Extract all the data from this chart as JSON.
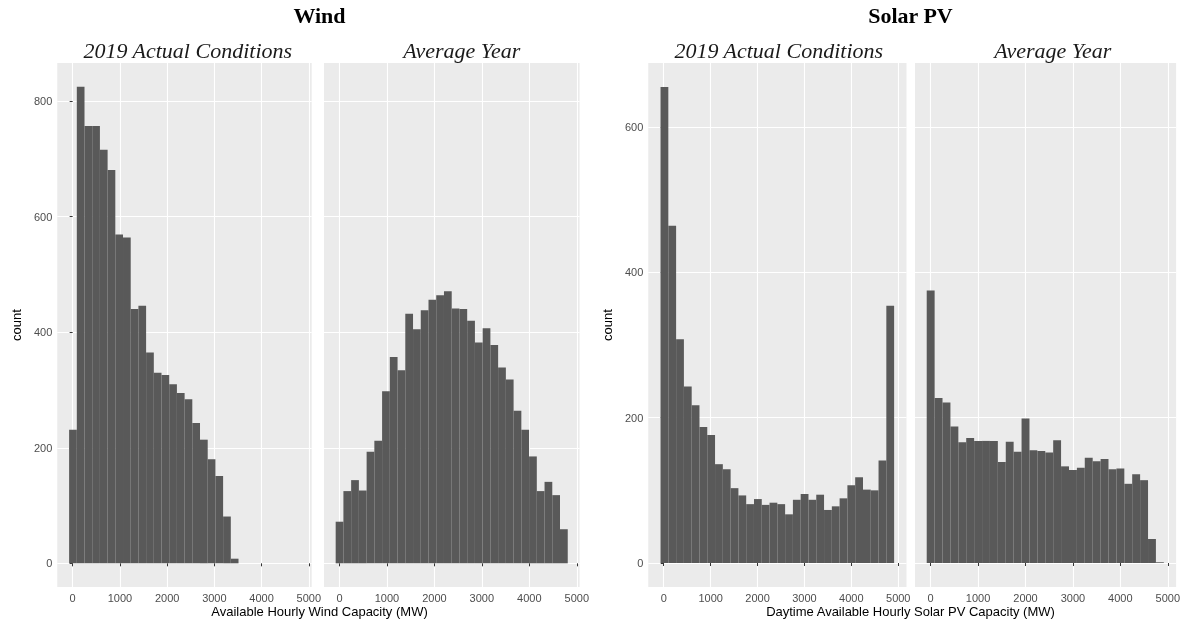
{
  "chart_data": [
    {
      "type": "histogram",
      "title": "Wind",
      "subtitle": "2019 Actual Conditions",
      "xlabel": "Available Hourly Wind Capacity (MW)",
      "ylabel": "count",
      "color": "#595959",
      "bins": [
        -75,
        88,
        251,
        414,
        577,
        740,
        903,
        1066,
        1229,
        1392,
        1555,
        1718,
        1881,
        2044,
        2207,
        2370,
        2533,
        2696,
        2859,
        3022,
        3185,
        3348,
        3511
      ],
      "values": [
        231,
        825,
        757,
        757,
        716,
        681,
        569,
        564,
        440,
        446,
        365,
        330,
        326,
        310,
        295,
        284,
        243,
        214,
        180,
        151,
        81,
        8
      ],
      "xlim": [
        -326,
        5060
      ],
      "xticks": [
        0,
        1000,
        2000,
        3000,
        4000,
        5000
      ],
      "ylim": [
        -41,
        866
      ],
      "yticks": [
        0,
        200,
        400,
        600,
        800
      ],
      "grid": true
    },
    {
      "type": "histogram",
      "subtitle": "Average Year",
      "color": "#595959",
      "bins": [
        -80,
        83,
        246,
        409,
        572,
        735,
        898,
        1061,
        1224,
        1387,
        1550,
        1713,
        1876,
        2039,
        2202,
        2365,
        2528,
        2691,
        2854,
        3017,
        3180,
        3343,
        3506,
        3669,
        3832,
        3995,
        4158,
        4321,
        4484,
        4647,
        4810
      ],
      "values": [
        72,
        125,
        144,
        126,
        193,
        212,
        298,
        357,
        334,
        432,
        405,
        438,
        456,
        464,
        471,
        441,
        440,
        420,
        382,
        407,
        378,
        339,
        318,
        264,
        231,
        185,
        125,
        141,
        118,
        59
      ],
      "xlim": [
        -326,
        5060
      ],
      "xticks": [
        0,
        1000,
        2000,
        3000,
        4000,
        5000
      ],
      "ylim": [
        -41,
        866
      ],
      "yticks": [
        0,
        200,
        400,
        600,
        800
      ],
      "grid": true,
      "tick_labels": "x"
    },
    {
      "type": "histogram",
      "title": "Solar PV",
      "subtitle": "2019 Actual Conditions",
      "xlabel": "Daytime Available Hourly Solar PV Capacity (MW)",
      "ylabel": "count",
      "color": "#595959",
      "bins": [
        -68,
        98,
        264,
        430,
        596,
        762,
        928,
        1094,
        1260,
        1426,
        1592,
        1758,
        1924,
        2090,
        2256,
        2422,
        2588,
        2754,
        2920,
        3086,
        3252,
        3418,
        3584,
        3750,
        3916,
        4082,
        4248,
        4414,
        4580,
        4746,
        4912
      ],
      "values": [
        655,
        464,
        308,
        243,
        217,
        187,
        176,
        136,
        129,
        103,
        93,
        81,
        88,
        80,
        83,
        81,
        67,
        87,
        95,
        87,
        94,
        73,
        78,
        89,
        107,
        118,
        101,
        100,
        141,
        354
      ],
      "xlim": [
        -330,
        5176
      ],
      "xticks": [
        0,
        1000,
        2000,
        3000,
        4000,
        5000
      ],
      "ylim": [
        -33,
        688
      ],
      "yticks": [
        0,
        200,
        400,
        600
      ],
      "grid": true
    },
    {
      "type": "histogram",
      "subtitle": "Average Year",
      "color": "#595959",
      "bins": [
        -83,
        84,
        250,
        417,
        584,
        750,
        917,
        1084,
        1250,
        1417,
        1584,
        1750,
        1917,
        2084,
        2250,
        2417,
        2584,
        2750,
        2917,
        3084,
        3250,
        3417,
        3584,
        3750,
        3917,
        4084,
        4250,
        4417,
        4584,
        4750,
        4917
      ],
      "values": [
        375,
        227,
        221,
        188,
        166,
        172,
        168,
        168,
        168,
        139,
        167,
        153,
        199,
        155,
        154,
        152,
        169,
        133,
        128,
        131,
        145,
        140,
        143,
        129,
        130,
        109,
        122,
        114,
        33,
        1
      ],
      "xlim": [
        -330,
        5176
      ],
      "xticks": [
        0,
        1000,
        2000,
        3000,
        4000,
        5000
      ],
      "ylim": [
        -33,
        688
      ],
      "yticks": [
        0,
        200,
        400,
        600
      ],
      "grid": true,
      "tick_labels": "x"
    }
  ]
}
